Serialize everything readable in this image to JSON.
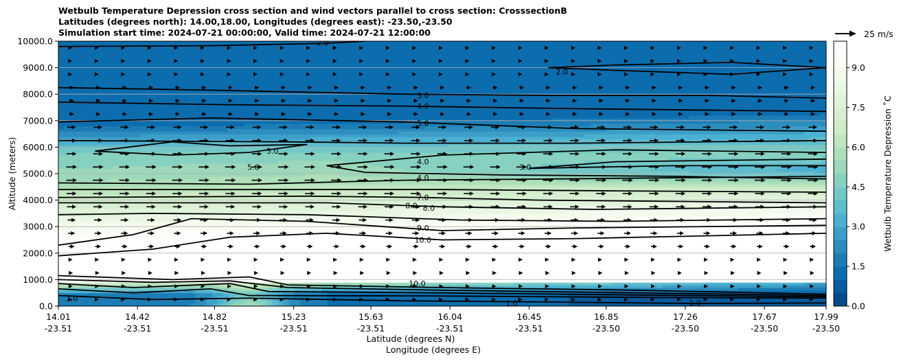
{
  "chart_data": {
    "type": "heatmap",
    "title_lines": [
      "Wetbulb Temperature Depression cross section and wind vectors parallel to cross section: CrosssectionB",
      "Latitudes (degrees north): 14.00,18.00, Longitudes (degrees east): -23.50,-23.50",
      "Simulation start time: 2024-07-21 00:00:00, Valid time: 2024-07-21 12:00:00"
    ],
    "ylabel": "Altitude (meters)",
    "xlabel_lines": [
      "Latitude (degrees N)",
      "Longitude (degrees E)"
    ],
    "ylim": [
      0,
      10000
    ],
    "y_ticks": [
      "0.0",
      "1000.0",
      "2000.0",
      "3000.0",
      "4000.0",
      "5000.0",
      "6000.0",
      "7000.0",
      "8000.0",
      "9000.0",
      "10000.0"
    ],
    "x_ticks": [
      {
        "lat": "14.01",
        "lon": "-23.51"
      },
      {
        "lat": "14.42",
        "lon": "-23.51"
      },
      {
        "lat": "14.82",
        "lon": "-23.51"
      },
      {
        "lat": "15.23",
        "lon": "-23.51"
      },
      {
        "lat": "15.63",
        "lon": "-23.51"
      },
      {
        "lat": "16.04",
        "lon": "-23.51"
      },
      {
        "lat": "16.45",
        "lon": "-23.51"
      },
      {
        "lat": "16.85",
        "lon": "-23.50"
      },
      {
        "lat": "17.26",
        "lon": "-23.50"
      },
      {
        "lat": "17.67",
        "lon": "-23.50"
      },
      {
        "lat": "17.99",
        "lon": "-23.50"
      }
    ],
    "grid": "horizontal",
    "colorbar": {
      "label": "Wetbulb Temperature Depression ˚C",
      "range": [
        0,
        10
      ],
      "ticks": [
        "0.0",
        "1.5",
        "3.0",
        "4.5",
        "6.0",
        "7.5",
        "9.0"
      ],
      "colormap": "GnBu reversed",
      "placement": "right"
    },
    "quiver_key": {
      "label": "25 m/s",
      "placement": "top-right"
    },
    "contour_labels": [
      {
        "text": "2.0",
        "lat": 15.38,
        "alt": 9950
      },
      {
        "text": "2.0",
        "lat": 16.62,
        "alt": 8850
      },
      {
        "text": "3.0",
        "lat": 15.9,
        "alt": 7950
      },
      {
        "text": "4.0",
        "lat": 15.9,
        "alt": 7550
      },
      {
        "text": "5.0",
        "lat": 15.9,
        "alt": 6900
      },
      {
        "text": "5.0",
        "lat": 15.12,
        "alt": 5850
      },
      {
        "text": "5.0",
        "lat": 15.02,
        "alt": 5250
      },
      {
        "text": "4.0",
        "lat": 15.9,
        "alt": 5450
      },
      {
        "text": "3.0",
        "lat": 16.43,
        "alt": 5250
      },
      {
        "text": "4.0",
        "lat": 15.9,
        "alt": 4850
      },
      {
        "text": "7.0",
        "lat": 15.9,
        "alt": 4100
      },
      {
        "text": "8.0",
        "lat": 15.84,
        "alt": 3800
      },
      {
        "text": "8.0",
        "lat": 15.93,
        "alt": 3700
      },
      {
        "text": "9.0",
        "lat": 15.9,
        "alt": 2950
      },
      {
        "text": "10.0",
        "lat": 15.9,
        "alt": 2500
      },
      {
        "text": "10.0",
        "lat": 15.87,
        "alt": 850
      },
      {
        "text": "1.0",
        "lat": 16.36,
        "alt": 100
      },
      {
        "text": "1.0",
        "lat": 17.31,
        "alt": 130
      },
      {
        "text": "1.0",
        "lat": 14.08,
        "alt": 300
      }
    ]
  },
  "colors": {
    "colormap_stops": [
      "#084081",
      "#0868ac",
      "#2b8cbe",
      "#4eb3d3",
      "#7bccc4",
      "#a8ddb5",
      "#ccebc5",
      "#e0f3db",
      "#f7fcf0",
      "#ffffff"
    ]
  }
}
